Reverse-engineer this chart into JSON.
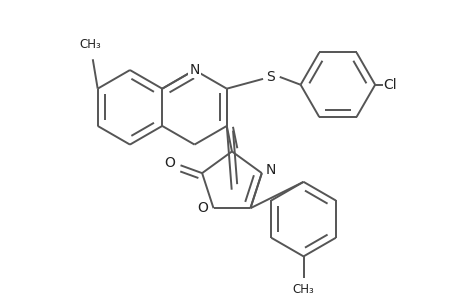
{
  "background_color": "#ffffff",
  "line_color": "#555555",
  "line_width": 1.4,
  "dbo": 0.012,
  "figsize": [
    4.6,
    3.0
  ],
  "dpi": 100,
  "xlim": [
    0,
    460
  ],
  "ylim": [
    0,
    300
  ]
}
